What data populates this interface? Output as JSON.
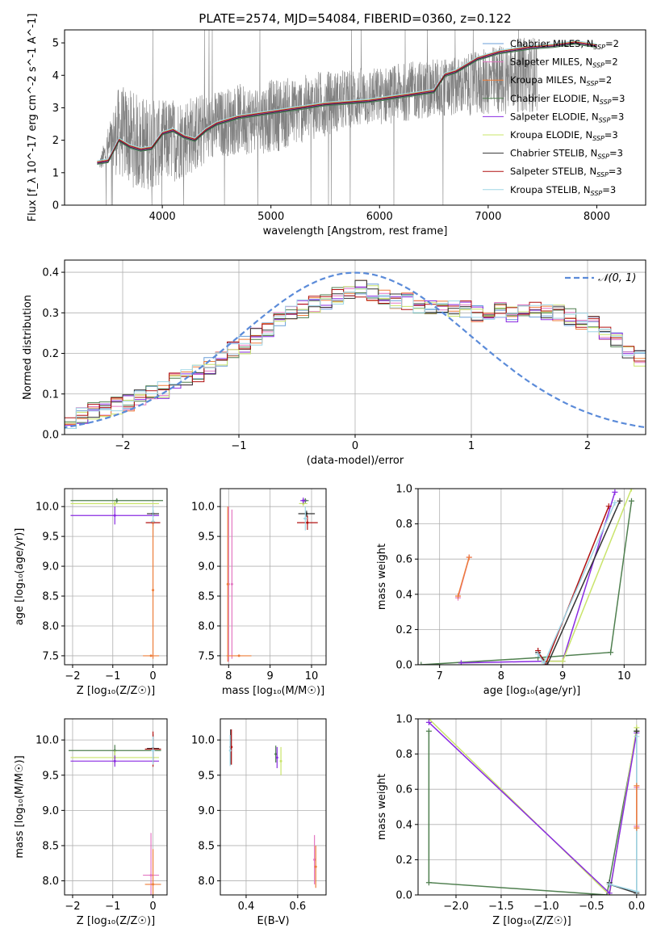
{
  "figure": {
    "title": "PLATE=2574, MJD=54084, FIBERID=0360, z=0.122"
  },
  "colors": {
    "Chabrier MILES": "#6a9fd8",
    "Salpeter MILES": "#e377c2",
    "Kroupa MILES": "#ed7d3a",
    "Chabrier ELODIE": "#4f7f4f",
    "Salpeter ELODIE": "#8a2be2",
    "Kroupa ELODIE": "#c9e46a",
    "Chabrier STELIB": "#333333",
    "Salpeter STELIB": "#b01010",
    "Kroupa STELIB": "#9fd6e6",
    "data": "#808080",
    "normal": "#5b8bd9",
    "grid": "#b0b0b0"
  },
  "chart_data": [
    {
      "type": "line",
      "panel": "spectrum",
      "xlabel": "wavelength [Angstrom, rest frame]",
      "ylabel": "Flux [f_λ 10^-17 erg cm^-2 s^-1 A^-1]",
      "xlim": [
        3100,
        8450
      ],
      "ylim": [
        0,
        5.4
      ],
      "xticks": [
        4000,
        5000,
        6000,
        7000,
        8000
      ],
      "yticks": [
        0,
        1,
        2,
        3,
        4,
        5
      ],
      "grid": false,
      "legend_position": "top-right",
      "legend": [
        {
          "label": "Chabrier MILES, N",
          "sub": "SSP",
          "suffix": "=2"
        },
        {
          "label": "Salpeter MILES, N",
          "sub": "SSP",
          "suffix": "=2"
        },
        {
          "label": "Kroupa MILES, N",
          "sub": "SSP",
          "suffix": "=2"
        },
        {
          "label": "Chabrier ELODIE, N",
          "sub": "SSP",
          "suffix": "=3"
        },
        {
          "label": "Salpeter ELODIE, N",
          "sub": "SSP",
          "suffix": "=3"
        },
        {
          "label": "Kroupa ELODIE, N",
          "sub": "SSP",
          "suffix": "=3"
        },
        {
          "label": "Chabrier STELIB, N",
          "sub": "SSP",
          "suffix": "=3"
        },
        {
          "label": "Salpeter STELIB, N",
          "sub": "SSP",
          "suffix": "=3"
        },
        {
          "label": "Kroupa STELIB, N",
          "sub": "SSP",
          "suffix": "=3"
        }
      ],
      "model_continuum": {
        "x": [
          3400,
          3500,
          3600,
          3700,
          3800,
          3900,
          4000,
          4100,
          4200,
          4300,
          4400,
          4500,
          4700,
          4900,
          5100,
          5300,
          5500,
          5700,
          5900,
          6100,
          6300,
          6500,
          6600,
          6700,
          6800,
          6900,
          7000,
          7100,
          7200,
          7300,
          7400,
          7600,
          7800,
          8000
        ],
        "y": [
          1.3,
          1.35,
          2.0,
          1.8,
          1.7,
          1.75,
          2.2,
          2.3,
          2.1,
          2.0,
          2.3,
          2.5,
          2.7,
          2.8,
          2.9,
          3.0,
          3.1,
          3.15,
          3.2,
          3.3,
          3.4,
          3.5,
          4.0,
          4.1,
          4.3,
          4.5,
          4.6,
          4.7,
          4.75,
          4.8,
          4.85,
          4.9,
          5.0,
          4.9
        ]
      },
      "observed_spectrum": {
        "x_range": [
          3420,
          7450
        ],
        "y_envelope_low": [
          1.1,
          0.8,
          0.3,
          0.5,
          0.7,
          1.0,
          1.4,
          1.5,
          1.5,
          1.6,
          1.8,
          2.0,
          2.2,
          2.3,
          2.4,
          2.5,
          2.6,
          2.6,
          2.7,
          2.7,
          2.7,
          2.8,
          2.8
        ],
        "y_envelope_high": [
          1.4,
          3.8,
          3.5,
          3.3,
          3.4,
          3.5,
          3.6,
          3.8,
          3.8,
          4.0,
          4.0,
          4.2,
          4.2,
          4.3,
          4.3,
          4.4,
          4.5,
          4.6,
          4.6,
          4.8,
          5.0,
          5.2,
          5.3
        ]
      }
    },
    {
      "type": "line",
      "panel": "residual-distribution",
      "xlabel": "(data-model)/error",
      "ylabel": "Normed distribution",
      "xlim": [
        -2.5,
        2.5
      ],
      "ylim": [
        0,
        0.43
      ],
      "xticks": [
        -2,
        -1,
        0,
        1,
        2
      ],
      "yticks": [
        0.0,
        0.1,
        0.2,
        0.3,
        0.4
      ],
      "grid": true,
      "legend_position": "top-right",
      "legend": [
        {
          "label": "𝒩(0, 1)"
        }
      ],
      "bin_width": 0.1,
      "histogram_shape": [
        0.03,
        0.03,
        0.05,
        0.06,
        0.06,
        0.07,
        0.08,
        0.09,
        0.1,
        0.11,
        0.13,
        0.14,
        0.15,
        0.17,
        0.19,
        0.21,
        0.22,
        0.24,
        0.26,
        0.28,
        0.3,
        0.31,
        0.32,
        0.33,
        0.34,
        0.35,
        0.36,
        0.35,
        0.34,
        0.33,
        0.33,
        0.32,
        0.32,
        0.32,
        0.31,
        0.31,
        0.3,
        0.3,
        0.31,
        0.3,
        0.3,
        0.31,
        0.3,
        0.3,
        0.29,
        0.28,
        0.27,
        0.25,
        0.23,
        0.21,
        0.19,
        0.17,
        0.15,
        0.13,
        0.12,
        0.1,
        0.09,
        0.08,
        0.07,
        0.06,
        0.05,
        0.05
      ]
    },
    {
      "type": "scatter",
      "panel": "age-vs-metallicity",
      "xlabel": "Z [log₁₀(Z/Z☉)]",
      "ylabel": "age  [log₁₀(age/yr)]",
      "xlim": [
        -2.2,
        0.35
      ],
      "ylim": [
        7.35,
        10.3
      ],
      "xticks": [
        -2,
        -1,
        0
      ],
      "yticks": [
        7.5,
        8.0,
        8.5,
        9.0,
        9.5,
        10.0
      ],
      "grid": true,
      "points": [
        {
          "series": "Chabrier ELODIE",
          "x": -0.9,
          "y": 10.1,
          "xerr": 1.15,
          "yerr": 0.04
        },
        {
          "series": "Kroupa ELODIE",
          "x": -0.95,
          "y": 10.05,
          "xerr": 1.1,
          "yerr": 0.04
        },
        {
          "series": "Salpeter ELODIE",
          "x": -0.95,
          "y": 9.85,
          "xerr": 1.1,
          "yerr": 0.15
        },
        {
          "series": "Chabrier STELIB",
          "x": 0.0,
          "y": 9.88,
          "xerr": 0.15,
          "yerr": 0.06
        },
        {
          "series": "Salpeter STELIB",
          "x": 0.0,
          "y": 9.73,
          "xerr": 0.18,
          "yerr": 0.06
        },
        {
          "series": "Kroupa STELIB",
          "x": 0.0,
          "y": 9.75,
          "xerr": 0.05,
          "yerr": 0.25
        },
        {
          "series": "Kroupa MILES",
          "x": 0.0,
          "y": 8.6,
          "xerr": 0.02,
          "yerr": 1.15
        },
        {
          "series": "Kroupa MILES",
          "x": -0.05,
          "y": 7.5,
          "xerr": 0.2,
          "yerr": 0.01
        }
      ]
    },
    {
      "type": "scatter",
      "panel": "age-vs-mass",
      "xlabel": "mass [log₁₀(M/M☉)]",
      "ylabel": "",
      "xlim": [
        7.8,
        10.35
      ],
      "ylim": [
        7.35,
        10.3
      ],
      "xticks": [
        8,
        9,
        10
      ],
      "yticks": [
        7.5,
        8.0,
        8.5,
        9.0,
        9.5,
        10.0
      ],
      "grid": true,
      "points": [
        {
          "series": "Salpeter MILES",
          "x": 8.0,
          "y": 8.7,
          "xerr": 0.02,
          "yerr": 1.3
        },
        {
          "series": "Kroupa MILES",
          "x": 7.98,
          "y": 8.7,
          "xerr": 0.02,
          "yerr": 1.3
        },
        {
          "series": "Salpeter MILES",
          "x": 8.08,
          "y": 8.7,
          "xerr": 0.01,
          "yerr": 1.25
        },
        {
          "series": "Kroupa MILES",
          "x": 8.25,
          "y": 7.5,
          "xerr": 0.3,
          "yerr": 0.01
        },
        {
          "series": "Chabrier ELODIE",
          "x": 9.85,
          "y": 10.1,
          "xerr": 0.08,
          "yerr": 0.04
        },
        {
          "series": "Kroupa ELODIE",
          "x": 9.8,
          "y": 10.05,
          "xerr": 0.1,
          "yerr": 0.04
        },
        {
          "series": "Salpeter ELODIE",
          "x": 9.8,
          "y": 10.1,
          "xerr": 0.07,
          "yerr": 0.05
        },
        {
          "series": "Chabrier STELIB",
          "x": 9.88,
          "y": 9.88,
          "xerr": 0.2,
          "yerr": 0.05
        },
        {
          "series": "Salpeter STELIB",
          "x": 9.9,
          "y": 9.73,
          "xerr": 0.25,
          "yerr": 0.12
        },
        {
          "series": "Kroupa STELIB",
          "x": 9.85,
          "y": 9.8,
          "xerr": 0.05,
          "yerr": 0.2
        }
      ]
    },
    {
      "type": "line",
      "panel": "massweight-vs-age",
      "xlabel": "age  [log₁₀(age/yr)]",
      "ylabel": "mass weight",
      "xlim": [
        6.65,
        10.35
      ],
      "ylim": [
        0,
        1
      ],
      "xticks": [
        7,
        8,
        9,
        10
      ],
      "yticks": [
        0.0,
        0.2,
        0.4,
        0.6,
        0.8,
        1.0
      ],
      "grid": true,
      "series": [
        {
          "name": "Salpeter MILES",
          "x": [
            7.3,
            7.48
          ],
          "y": [
            0.38,
            0.61
          ]
        },
        {
          "name": "Kroupa MILES",
          "x": [
            7.3,
            7.48
          ],
          "y": [
            0.39,
            0.61
          ]
        },
        {
          "name": "Chabrier ELODIE",
          "x": [
            6.7,
            8.6,
            9.78,
            10.12
          ],
          "y": [
            0.0,
            0.04,
            0.07,
            0.93
          ]
        },
        {
          "name": "Salpeter ELODIE",
          "x": [
            7.35,
            8.7,
            9.0,
            9.85
          ],
          "y": [
            0.01,
            0.02,
            0.02,
            0.98
          ]
        },
        {
          "name": "Kroupa ELODIE",
          "x": [
            8.7,
            9.0,
            10.12
          ],
          "y": [
            0.02,
            0.02,
            1.0
          ]
        },
        {
          "name": "Chabrier STELIB",
          "x": [
            8.6,
            8.75,
            9.93
          ],
          "y": [
            0.07,
            0.0,
            0.93
          ]
        },
        {
          "name": "Salpeter STELIB",
          "x": [
            8.6,
            8.72,
            9.75
          ],
          "y": [
            0.08,
            0.0,
            0.9
          ]
        },
        {
          "name": "Kroupa STELIB",
          "x": [
            8.6,
            8.7,
            9.85
          ],
          "y": [
            0.06,
            0.01,
            0.92
          ]
        }
      ]
    },
    {
      "type": "scatter",
      "panel": "mass-vs-metallicity",
      "xlabel": "Z [log₁₀(Z/Z☉)]",
      "ylabel": "mass [log₁₀(M/M☉)]",
      "xlim": [
        -2.2,
        0.35
      ],
      "ylim": [
        7.8,
        10.3
      ],
      "xticks": [
        -2,
        -1,
        0
      ],
      "yticks": [
        8.0,
        8.5,
        9.0,
        9.5,
        10.0
      ],
      "grid": true,
      "points": [
        {
          "series": "Chabrier ELODIE",
          "x": -0.95,
          "y": 9.85,
          "xerr": 1.15,
          "yerr": 0.08
        },
        {
          "series": "Kroupa ELODIE",
          "x": -0.95,
          "y": 9.75,
          "xerr": 1.1,
          "yerr": 0.1
        },
        {
          "series": "Salpeter ELODIE",
          "x": -0.95,
          "y": 9.7,
          "xerr": 1.1,
          "yerr": 0.08
        },
        {
          "series": "Chabrier STELIB",
          "x": 0.0,
          "y": 9.88,
          "xerr": 0.15,
          "yerr": 0.2
        },
        {
          "series": "Salpeter STELIB",
          "x": 0.0,
          "y": 9.87,
          "xerr": 0.2,
          "yerr": 0.25
        },
        {
          "series": "Kroupa STELIB",
          "x": 0.0,
          "y": 9.85,
          "xerr": 0.05,
          "yerr": 0.2
        },
        {
          "series": "Salpeter MILES",
          "x": -0.05,
          "y": 8.08,
          "xerr": 0.2,
          "yerr": 0.6
        },
        {
          "series": "Kroupa MILES",
          "x": 0.0,
          "y": 7.95,
          "xerr": 0.2,
          "yerr": 0.5
        }
      ]
    },
    {
      "type": "scatter",
      "panel": "mass-vs-reddening",
      "xlabel": "E(B-V)",
      "ylabel": "",
      "xlim": [
        0.3,
        0.71
      ],
      "ylim": [
        7.8,
        10.3
      ],
      "xticks": [
        0.4,
        0.6
      ],
      "yticks": [
        8.0,
        8.5,
        9.0,
        9.5,
        10.0
      ],
      "grid": true,
      "points": [
        {
          "series": "Chabrier STELIB",
          "x": 0.34,
          "y": 9.9,
          "yerr": 0.25
        },
        {
          "series": "Salpeter STELIB",
          "x": 0.343,
          "y": 9.9,
          "yerr": 0.25
        },
        {
          "series": "Kroupa STELIB",
          "x": 0.338,
          "y": 9.85,
          "yerr": 0.22
        },
        {
          "series": "Chabrier ELODIE",
          "x": 0.515,
          "y": 9.8,
          "yerr": 0.12
        },
        {
          "series": "Salpeter ELODIE",
          "x": 0.52,
          "y": 9.75,
          "yerr": 0.15
        },
        {
          "series": "Kroupa ELODIE",
          "x": 0.535,
          "y": 9.7,
          "yerr": 0.2
        },
        {
          "series": "Salpeter MILES",
          "x": 0.665,
          "y": 8.3,
          "yerr": 0.35
        },
        {
          "series": "Kroupa MILES",
          "x": 0.67,
          "y": 8.2,
          "yerr": 0.3
        }
      ]
    },
    {
      "type": "line",
      "panel": "massweight-vs-metallicity",
      "xlabel": "Z [log₁₀(Z/Z☉)]",
      "ylabel": "mass weight",
      "xlim": [
        -2.42,
        0.1
      ],
      "ylim": [
        0,
        1
      ],
      "xticks": [
        -2.0,
        -1.5,
        -1.0,
        -0.5,
        0.0
      ],
      "yticks": [
        0.0,
        0.2,
        0.4,
        0.6,
        0.8,
        1.0
      ],
      "grid": true,
      "series": [
        {
          "name": "Chabrier ELODIE",
          "x": [
            -2.3,
            -2.3,
            -0.33,
            0.0
          ],
          "y": [
            0.93,
            0.07,
            0.0,
            0.93
          ]
        },
        {
          "name": "Kroupa ELODIE",
          "x": [
            -2.3,
            -0.3,
            0.0
          ],
          "y": [
            1.0,
            0.0,
            0.95
          ]
        },
        {
          "name": "Salpeter ELODIE",
          "x": [
            -2.3,
            -0.3,
            0.0
          ],
          "y": [
            0.98,
            0.01,
            0.92
          ]
        },
        {
          "name": "Chabrier STELIB",
          "x": [
            -0.3,
            -0.3,
            0.0,
            0.0
          ],
          "y": [
            0.07,
            0.06,
            0.01,
            0.93
          ]
        },
        {
          "name": "Kroupa STELIB",
          "x": [
            -0.3,
            0.0,
            0.0
          ],
          "y": [
            0.06,
            0.02,
            0.9
          ]
        },
        {
          "name": "Salpeter MILES",
          "x": [
            0.0,
            0.0
          ],
          "y": [
            0.39,
            0.61
          ]
        },
        {
          "name": "Kroupa MILES",
          "x": [
            0.0,
            0.0
          ],
          "y": [
            0.38,
            0.62
          ]
        }
      ]
    }
  ]
}
